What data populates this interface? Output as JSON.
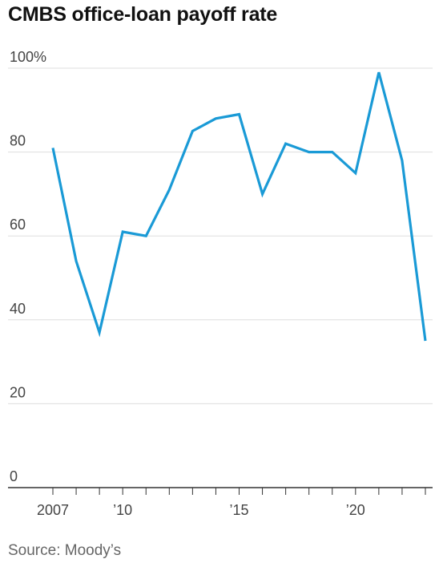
{
  "title": "CMBS office-loan payoff rate",
  "source": "Source: Moody’s",
  "chart_data": {
    "type": "line",
    "title": "CMBS office-loan payoff rate",
    "xlabel": "",
    "ylabel": "",
    "x": [
      2007,
      2008,
      2009,
      2010,
      2011,
      2012,
      2013,
      2014,
      2015,
      2016,
      2017,
      2018,
      2019,
      2020,
      2021,
      2022,
      2023
    ],
    "series": [
      {
        "values": [
          81,
          54,
          37,
          61,
          60,
          71,
          85,
          88,
          89,
          70,
          82,
          80,
          80,
          75,
          99,
          78,
          35
        ]
      }
    ],
    "xlim": [
      2007,
      2023
    ],
    "ylim": [
      0,
      100
    ],
    "y_ticks": [
      0,
      20,
      40,
      60,
      80,
      100
    ],
    "y_tick_labels": [
      "0",
      "20",
      "40",
      "60",
      "80",
      "100%"
    ],
    "x_ticks": [
      2007,
      2010,
      2015,
      2020
    ],
    "x_tick_labels": [
      "2007",
      "’10",
      "’15",
      "’20"
    ],
    "grid": true,
    "line_color": "#1a9ad6",
    "grid_color": "#dddddd",
    "axis_color": "#333333"
  }
}
